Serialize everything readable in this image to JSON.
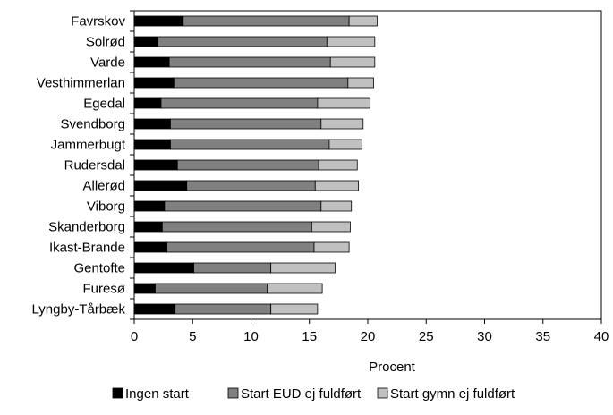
{
  "chart_data": {
    "type": "bar",
    "orientation": "horizontal",
    "stacked": true,
    "categories": [
      "Favrskov",
      "Solrød",
      "Varde",
      "Vesthimmerlan",
      "Egedal",
      "Svendborg",
      "Jammerbugt",
      "Rudersdal",
      "Allerød",
      "Viborg",
      "Skanderborg",
      "Ikast-Brande",
      "Gentofte",
      "Furesø",
      "Lyngby-Tårbæk"
    ],
    "series": [
      {
        "name": "Ingen start",
        "color": "#000000",
        "values": [
          4.2,
          2.0,
          3.0,
          3.4,
          2.3,
          3.1,
          3.1,
          3.7,
          4.5,
          2.6,
          2.4,
          2.8,
          5.1,
          1.8,
          3.5
        ]
      },
      {
        "name": "Start EUD ej fuldført",
        "color": "#808080",
        "values": [
          14.2,
          14.5,
          13.8,
          14.9,
          13.4,
          12.9,
          13.6,
          12.1,
          11.0,
          13.4,
          12.8,
          12.6,
          6.6,
          9.6,
          8.2
        ]
      },
      {
        "name": "Start gymn ej fuldført",
        "color": "#c0c0c0",
        "values": [
          2.4,
          4.1,
          3.8,
          2.2,
          4.5,
          3.6,
          2.8,
          3.3,
          3.7,
          2.6,
          3.3,
          3.0,
          5.5,
          4.7,
          4.0
        ]
      }
    ],
    "xlabel": "Procent",
    "xlim": [
      0,
      40
    ],
    "xticks": [
      "0",
      "5",
      "10",
      "15",
      "20",
      "25",
      "30",
      "35",
      "40"
    ],
    "grid": false,
    "legend_position": "bottom"
  }
}
